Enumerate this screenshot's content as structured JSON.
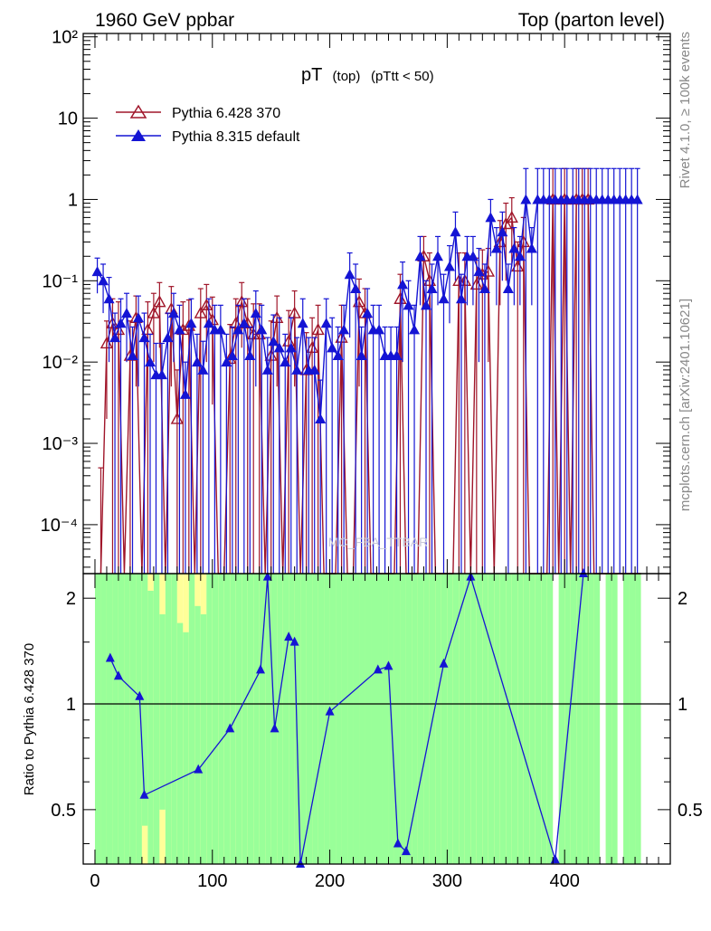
{
  "header": {
    "left": "1960 GeV ppbar",
    "right": "Top (parton level)"
  },
  "side_labels": {
    "upper": "Rivet 4.1.0, ≥ 100k events",
    "lower": "mcplots.cern.ch [arXiv:2401.10621]"
  },
  "watermark": "MC_FBA_TTBAR",
  "colors": {
    "pythia6": "#a0162a",
    "pythia8": "#1414d4",
    "band_inner": "#99ff99",
    "band_outer": "#ffff99",
    "axis": "#000000"
  },
  "chart_data": [
    {
      "type": "scatter",
      "panel": "main",
      "title": "pT (top) (pTtt < 50)",
      "title_main": "pT",
      "title_sub": "(top)",
      "title_rest": "(pTtt < 50)",
      "xlabel": "",
      "ylabel": "",
      "yscale": "log",
      "xlim": [
        -10,
        490
      ],
      "ylim": [
        2.5e-05,
        110
      ],
      "ytick_labels": [
        "10⁻⁴",
        "10⁻³",
        "10⁻²",
        "10⁻¹",
        "1",
        "10",
        "10²"
      ],
      "ytick_values": [
        0.0001,
        0.001,
        0.01,
        0.1,
        1,
        10,
        100
      ],
      "legend": [
        "Pythia 6.428 370",
        "Pythia 8.315 default"
      ],
      "legend_position": "top-left",
      "series": [
        {
          "name": "Pythia 6.428 370",
          "marker": "open-triangle",
          "x": [
            5,
            10,
            15,
            20,
            25,
            30,
            35,
            40,
            45,
            50,
            55,
            60,
            65,
            70,
            75,
            80,
            85,
            90,
            95,
            100,
            105,
            110,
            115,
            120,
            125,
            130,
            135,
            140,
            145,
            150,
            155,
            160,
            165,
            170,
            175,
            180,
            185,
            190,
            195,
            200,
            205,
            210,
            215,
            220,
            225,
            230,
            235,
            240,
            245,
            250,
            255,
            260,
            265,
            270,
            275,
            280,
            285,
            290,
            295,
            300,
            305,
            310,
            315,
            320,
            325,
            330,
            335,
            340,
            345,
            350,
            355,
            360,
            365,
            370,
            375,
            380,
            385,
            390,
            395,
            400,
            405,
            410,
            415,
            420,
            425,
            430,
            435,
            440,
            445,
            450,
            455,
            460,
            465
          ],
          "values": [
            0,
            0.017,
            0.03,
            0.025,
            0,
            0.012,
            0.035,
            0,
            0.025,
            0.04,
            0.055,
            0,
            0.045,
            0.002,
            0.025,
            0.028,
            0,
            0.04,
            0.05,
            0.033,
            0,
            0,
            0.011,
            0.03,
            0.055,
            0.03,
            0.022,
            0.022,
            0,
            0.012,
            0.035,
            0,
            0.018,
            0.04,
            0,
            0.008,
            0.015,
            0.025,
            0,
            0,
            0,
            0.02,
            0,
            0,
            0.055,
            0.04,
            0,
            0,
            0,
            0,
            0,
            0.06,
            0,
            0,
            0,
            0.2,
            0.1,
            0,
            0,
            0,
            0,
            0.1,
            0.1,
            0,
            0.09,
            0.12,
            0.13,
            0,
            0.3,
            0.5,
            0.6,
            0.15,
            0.3,
            0,
            0,
            0,
            0,
            1,
            0,
            1,
            0,
            1,
            1,
            1,
            0,
            0,
            0,
            0,
            0,
            0,
            0,
            0,
            0
          ],
          "errors": [
            0.0005,
            0.015,
            0.03,
            0.03,
            0,
            0.02,
            0.03,
            0,
            0.03,
            0.03,
            0.04,
            0,
            0.04,
            0.006,
            0.03,
            0.03,
            0,
            0.04,
            0.04,
            0.03,
            0,
            0,
            0.018,
            0.03,
            0.04,
            0.03,
            0.03,
            0.03,
            0,
            0.02,
            0.03,
            0,
            0.025,
            0.035,
            0,
            0.015,
            0.02,
            0.025,
            0,
            0,
            0,
            0.03,
            0,
            0,
            0.05,
            0.04,
            0,
            0,
            0,
            0,
            0,
            0.06,
            0,
            0,
            0,
            0.15,
            0.12,
            0,
            0,
            0,
            0,
            0.12,
            0.12,
            0,
            0.1,
            0.12,
            0.12,
            0,
            0.25,
            0.4,
            0.45,
            0.15,
            0.3,
            0,
            0,
            0,
            0,
            1.4,
            0,
            1.4,
            0,
            1.4,
            1.4,
            1.4,
            0,
            0,
            0,
            0,
            0,
            0,
            0,
            0,
            0
          ]
        },
        {
          "name": "Pythia 8.315 default",
          "marker": "filled-triangle",
          "x": [
            2,
            7,
            12,
            17,
            22,
            27,
            32,
            37,
            42,
            47,
            52,
            57,
            62,
            67,
            72,
            77,
            82,
            87,
            92,
            97,
            102,
            107,
            112,
            117,
            122,
            127,
            132,
            137,
            142,
            147,
            152,
            157,
            162,
            167,
            172,
            177,
            182,
            187,
            192,
            197,
            202,
            207,
            212,
            217,
            222,
            227,
            232,
            237,
            242,
            247,
            252,
            257,
            262,
            267,
            272,
            277,
            282,
            287,
            292,
            297,
            302,
            307,
            312,
            317,
            322,
            327,
            332,
            337,
            342,
            347,
            352,
            357,
            362,
            367,
            372,
            377,
            382,
            387,
            392,
            397,
            402,
            407,
            412,
            417,
            422,
            427,
            432,
            437,
            442,
            447,
            452,
            457,
            462
          ],
          "values": [
            0.13,
            0.1,
            0.06,
            0.02,
            0.03,
            0.04,
            0.012,
            0.035,
            0.02,
            0.01,
            0.007,
            0.007,
            0.02,
            0.04,
            0.025,
            0.004,
            0.03,
            0.01,
            0.008,
            0.03,
            0.025,
            0.025,
            0.01,
            0.012,
            0.025,
            0.03,
            0.012,
            0.04,
            0.025,
            0.008,
            0.018,
            0.015,
            0.01,
            0.015,
            0.008,
            0.03,
            0.008,
            0.008,
            0.002,
            0.03,
            0.015,
            0.012,
            0.025,
            0.12,
            0.08,
            0.012,
            0.04,
            0.025,
            0.025,
            0.012,
            0.012,
            0.012,
            0.09,
            0.05,
            0.025,
            0.2,
            0.05,
            0.08,
            0.2,
            0.06,
            0.15,
            0.4,
            0.06,
            0.2,
            0.2,
            0.13,
            0.08,
            0.6,
            0.25,
            0.4,
            0.08,
            0.25,
            0.2,
            1,
            0.25,
            1,
            1,
            1,
            1,
            1,
            1,
            1,
            1,
            1,
            1,
            1,
            1,
            1,
            1,
            1,
            1,
            1,
            1
          ],
          "errors": [
            0.06,
            0.06,
            0.05,
            0.02,
            0.03,
            0.03,
            0.015,
            0.03,
            0.02,
            0.012,
            0.01,
            0.01,
            0.02,
            0.03,
            0.025,
            0.006,
            0.03,
            0.012,
            0.01,
            0.03,
            0.025,
            0.025,
            0.012,
            0.015,
            0.025,
            0.03,
            0.015,
            0.035,
            0.025,
            0.012,
            0.02,
            0.02,
            0.012,
            0.02,
            0.012,
            0.03,
            0.012,
            0.012,
            0.004,
            0.03,
            0.02,
            0.015,
            0.025,
            0.1,
            0.08,
            0.015,
            0.04,
            0.025,
            0.025,
            0.015,
            0.015,
            0.015,
            0.08,
            0.05,
            0.025,
            0.15,
            0.05,
            0.08,
            0.15,
            0.06,
            0.12,
            0.3,
            0.06,
            0.15,
            0.15,
            0.12,
            0.08,
            0.4,
            0.2,
            0.3,
            0.08,
            0.2,
            0.15,
            1.4,
            0.2,
            1.4,
            1.4,
            1.4,
            1.4,
            1.4,
            1.4,
            1.4,
            1.4,
            1.4,
            1.4,
            1.4,
            1.4,
            1.4,
            1.4,
            1.4,
            1.4,
            1.4,
            1.4
          ]
        }
      ]
    },
    {
      "type": "line",
      "panel": "ratio",
      "ylabel": "Ratio to Pythia 6.428 370",
      "xlabel": "",
      "xlim": [
        -10,
        490
      ],
      "ylim": [
        0.35,
        2.35
      ],
      "yscale": "log",
      "ytick_labels": [
        "0.5",
        "1",
        "2"
      ],
      "ytick_values": [
        0.5,
        1,
        2
      ],
      "xtick_labels": [
        "0",
        "100",
        "200",
        "300",
        "400"
      ],
      "xtick_values": [
        0,
        100,
        200,
        300,
        400
      ],
      "reference": 1,
      "bands": {
        "bin_width": 5,
        "x0": 0,
        "inner_low": [
          0.35,
          0.35,
          0.35,
          0.35,
          0.35,
          0.35,
          0.35,
          0.35,
          0.45,
          0.35,
          0.35,
          0.5,
          0.35,
          0.35,
          0.35,
          0.35,
          0.35,
          0.35,
          0.35,
          0.35,
          0.35,
          0.35,
          0.35,
          0.35,
          0.35,
          0.35,
          0.35,
          0.35,
          0.35,
          0.35,
          0.35,
          0.35,
          0.35,
          0.35,
          0.35,
          0.35,
          0.35,
          0.35,
          0.35,
          0.35,
          0.35,
          0.35,
          0.35,
          0.35,
          0.35,
          0.35,
          0.35,
          0.35,
          0.35,
          0.35,
          0.35,
          0.35,
          0.35,
          0.35,
          0.35,
          0.35,
          0.35,
          0.35,
          0.35,
          0.35,
          0.35,
          0.35,
          0.35,
          0.35,
          0.35,
          0.35,
          0.35,
          0.35,
          0.35,
          0.35,
          0.35,
          0.35,
          0.35,
          0.35,
          0.35,
          0.35,
          0.35,
          0.35,
          0.35,
          0.35,
          0.35,
          0.35,
          0.35,
          0.35,
          0.35,
          0.35,
          0.35,
          0.35,
          0.35,
          0.35,
          0.35,
          0.35,
          0.35
        ],
        "inner_high": [
          2.35,
          2.35,
          2.35,
          2.35,
          2.35,
          2.35,
          2.35,
          2.35,
          2.35,
          2.1,
          2.35,
          1.8,
          2.35,
          2.35,
          1.7,
          1.6,
          2.35,
          1.9,
          1.8,
          2.35,
          2.35,
          2.35,
          2.35,
          2.35,
          2.35,
          2.35,
          2.35,
          2.35,
          2.35,
          2.35,
          2.35,
          2.35,
          2.35,
          2.35,
          2.35,
          2.35,
          2.35,
          2.35,
          2.35,
          2.35,
          2.35,
          2.35,
          2.35,
          2.35,
          2.35,
          2.35,
          2.35,
          2.35,
          2.35,
          2.35,
          2.35,
          2.35,
          2.35,
          2.35,
          2.35,
          2.35,
          2.35,
          2.35,
          2.35,
          2.35,
          2.35,
          2.35,
          2.35,
          2.35,
          2.35,
          2.35,
          2.35,
          2.35,
          2.35,
          2.35,
          2.35,
          2.35,
          2.35,
          2.35,
          2.35,
          2.35,
          2.35,
          2.35,
          2.35,
          2.35,
          2.35,
          2.35,
          2.35,
          2.35,
          2.35,
          2.35,
          2.35,
          2.35,
          2.35,
          2.35,
          2.35,
          2.35,
          2.35
        ],
        "present": [
          1,
          1,
          1,
          1,
          1,
          1,
          1,
          1,
          1,
          1,
          1,
          1,
          1,
          1,
          1,
          1,
          1,
          1,
          1,
          1,
          1,
          1,
          1,
          1,
          1,
          1,
          1,
          1,
          1,
          1,
          1,
          1,
          1,
          1,
          1,
          1,
          1,
          1,
          1,
          1,
          1,
          1,
          1,
          1,
          1,
          1,
          1,
          1,
          1,
          1,
          1,
          1,
          1,
          1,
          1,
          1,
          1,
          1,
          1,
          1,
          1,
          1,
          1,
          1,
          1,
          1,
          1,
          1,
          1,
          1,
          1,
          1,
          1,
          1,
          1,
          1,
          1,
          1,
          0,
          1,
          1,
          1,
          1,
          1,
          1,
          1,
          0,
          1,
          1,
          0,
          1,
          1,
          1
        ]
      },
      "series": [
        {
          "name": "Pythia 8.315 default",
          "x": [
            13,
            20,
            38,
            42,
            88,
            115,
            141,
            147,
            153,
            165,
            170,
            175,
            200,
            241,
            250,
            258,
            265,
            297,
            320,
            392,
            416
          ],
          "values": [
            1.35,
            1.2,
            1.05,
            0.55,
            0.65,
            0.85,
            1.25,
            2.3,
            0.85,
            1.55,
            1.5,
            0.35,
            0.95,
            1.25,
            1.28,
            0.4,
            0.38,
            1.3,
            2.3,
            0.36,
            2.35
          ]
        }
      ]
    }
  ]
}
